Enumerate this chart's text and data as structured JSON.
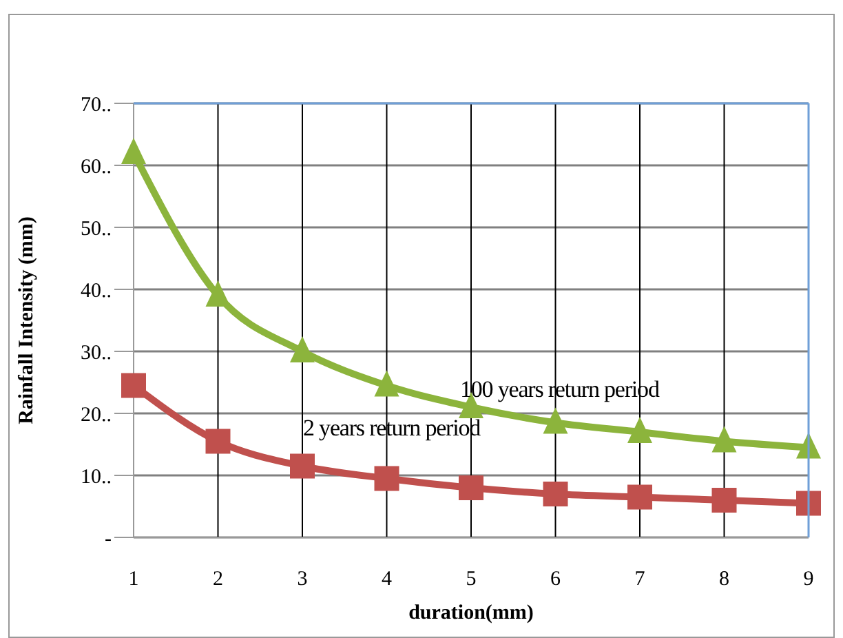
{
  "chart_data": {
    "type": "line",
    "xlabel": "duration(mm)",
    "ylabel": "Rainfall Intensity (mm)",
    "categories": [
      "1",
      "2",
      "3",
      "4",
      "5",
      "6",
      "7",
      "8",
      "9"
    ],
    "series": [
      {
        "color": "#8cb43c",
        "marker": "triangle",
        "values": [
          62,
          39,
          30,
          24.5,
          21,
          18.5,
          17,
          15.5,
          14.5
        ]
      },
      {
        "color": "#c0504d",
        "marker": "square",
        "values": [
          24.5,
          15.5,
          11.5,
          9.5,
          8,
          7,
          6.5,
          6,
          5.5
        ]
      }
    ],
    "ylim": [
      0,
      70
    ],
    "yticks": [
      {
        "value": 0,
        "label": "-"
      },
      {
        "value": 10,
        "label": "10.."
      },
      {
        "value": 20,
        "label": "20.."
      },
      {
        "value": 30,
        "label": "30.."
      },
      {
        "value": 40,
        "label": "40.."
      },
      {
        "value": 50,
        "label": "50.."
      },
      {
        "value": 60,
        "label": "60.."
      },
      {
        "value": 70,
        "label": "70.."
      }
    ],
    "grid": true,
    "legend": false,
    "annotations": [
      {
        "text": "100 years return period",
        "x": "5",
        "y": 24
      },
      "2 years return period"
    ]
  }
}
